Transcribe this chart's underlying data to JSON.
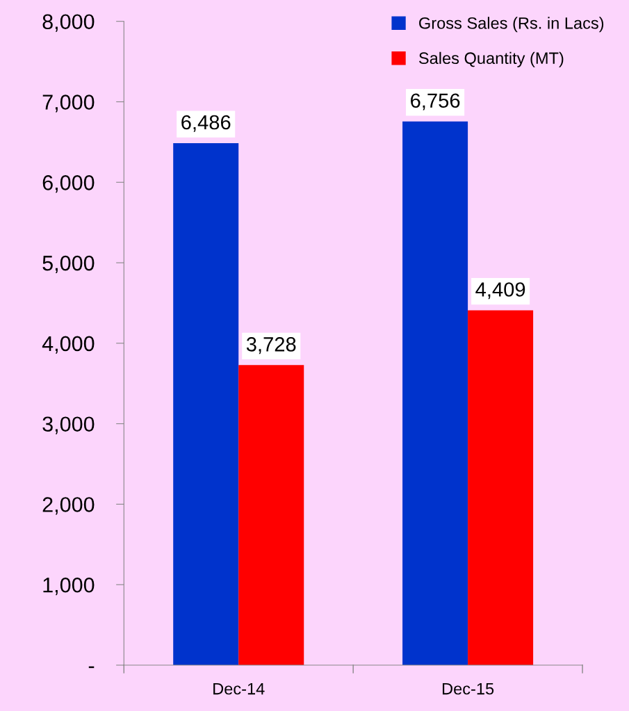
{
  "chart_data": {
    "type": "bar",
    "categories": [
      "Dec-14",
      "Dec-15"
    ],
    "series": [
      {
        "name": "Gross Sales (Rs. in Lacs)",
        "color": "#0033cc",
        "values": [
          6486,
          6756
        ]
      },
      {
        "name": "Sales Quantity (MT)",
        "color": "#ff0000",
        "values": [
          3728,
          4409
        ]
      }
    ],
    "ylim": [
      0,
      8000
    ],
    "yticks": [
      {
        "value": 0,
        "label": "-"
      },
      {
        "value": 1000,
        "label": "1,000"
      },
      {
        "value": 2000,
        "label": "2,000"
      },
      {
        "value": 3000,
        "label": "3,000"
      },
      {
        "value": 4000,
        "label": "4,000"
      },
      {
        "value": 5000,
        "label": "5,000"
      },
      {
        "value": 6000,
        "label": "6,000"
      },
      {
        "value": 7000,
        "label": "7,000"
      },
      {
        "value": 8000,
        "label": "8,000"
      }
    ],
    "value_labels": [
      [
        "6,486",
        "6,756"
      ],
      [
        "3,728",
        "4,409"
      ]
    ],
    "grid": false,
    "legend": "top right"
  }
}
